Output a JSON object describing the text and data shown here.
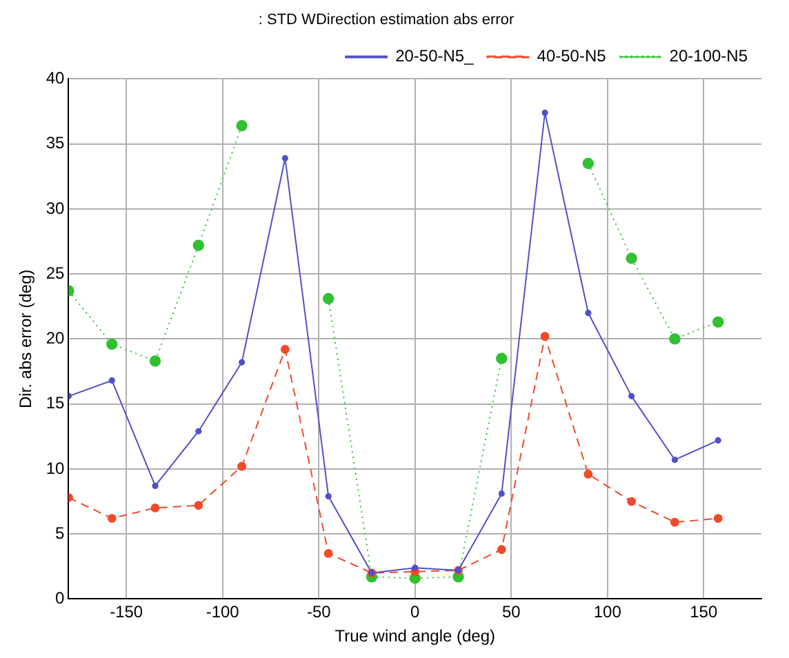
{
  "chart_data": {
    "type": "line",
    "title": ": STD WDirection estimation abs error",
    "xlabel": "True wind angle (deg)",
    "ylabel": "Dir. abs error (deg)",
    "x": [
      -180,
      -157.5,
      -135,
      -112.5,
      -90,
      -67.5,
      -45,
      -22.5,
      0,
      22.5,
      45,
      67.5,
      90,
      112.5,
      135,
      157.5
    ],
    "series": [
      {
        "name": "20-50-N5_",
        "color": "#5050c8",
        "line_style": "solid",
        "values": [
          15.6,
          16.8,
          8.7,
          12.9,
          18.2,
          33.9,
          7.9,
          2.0,
          2.4,
          2.2,
          8.1,
          37.4,
          22.0,
          15.6,
          10.7,
          12.2
        ]
      },
      {
        "name": "40-50-N5",
        "color": "#f04a2a",
        "line_style": "dashed",
        "values": [
          7.8,
          6.2,
          7.0,
          7.2,
          10.2,
          19.2,
          3.5,
          2.0,
          2.1,
          2.2,
          3.8,
          20.2,
          9.6,
          7.5,
          5.9,
          6.2
        ]
      },
      {
        "name": "20-100-N5",
        "color": "#30c030",
        "line_style": "dotted",
        "values": [
          23.7,
          19.6,
          18.3,
          27.2,
          36.4,
          null,
          23.1,
          1.7,
          1.6,
          1.7,
          18.5,
          null,
          33.5,
          26.2,
          20.0,
          21.3
        ]
      }
    ],
    "xlim": [
      -180,
      180
    ],
    "xticks": [
      -150,
      -100,
      -50,
      0,
      50,
      100,
      150
    ],
    "ylim": [
      0,
      40
    ],
    "yticks": [
      0,
      5,
      10,
      15,
      20,
      25,
      30,
      35,
      40
    ],
    "grid": true,
    "legend": "top right",
    "marker": "circle"
  }
}
